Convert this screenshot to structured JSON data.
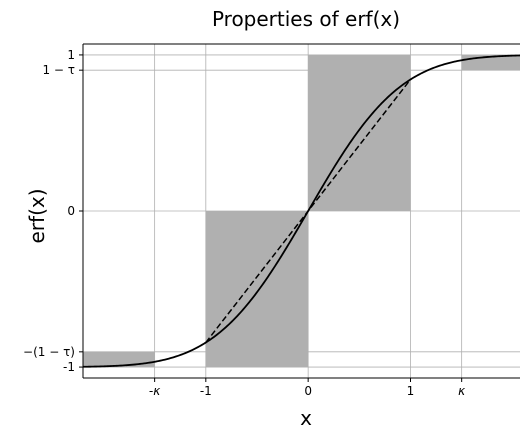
{
  "chart_data": {
    "type": "line",
    "title": "Properties of erf(x)",
    "xlabel": "x",
    "ylabel": "erf(x)",
    "xlim": [
      -2.2,
      2.07
    ],
    "ylim": [
      -1.07,
      1.07
    ],
    "grid": true,
    "kappa": 1.5,
    "tau": 0.0977,
    "x_ticks": [
      {
        "value": -1.5,
        "label": "-κ"
      },
      {
        "value": -1,
        "label": "-1"
      },
      {
        "value": 0,
        "label": "0"
      },
      {
        "value": 1,
        "label": "1"
      },
      {
        "value": 1.5,
        "label": "κ"
      }
    ],
    "y_ticks": [
      {
        "value": 1,
        "label": "1"
      },
      {
        "value": 0.9023,
        "label": "1 − τ"
      },
      {
        "value": 0,
        "label": "0"
      },
      {
        "value": -0.9023,
        "label": "−(1 − τ)"
      },
      {
        "value": -1,
        "label": "-1"
      }
    ],
    "shaded_regions": [
      {
        "x0": -2.2,
        "x1": -1.5,
        "y0": -1,
        "y1": -0.9023
      },
      {
        "x0": -1,
        "x1": 0,
        "y0": -1,
        "y1": 0
      },
      {
        "x0": 0,
        "x1": 1,
        "y0": 0,
        "y1": 1
      },
      {
        "x0": 1.5,
        "x1": 2.07,
        "y0": 0.9023,
        "y1": 1
      }
    ],
    "series": [
      {
        "style": "solid",
        "function": "erf",
        "x_range": [
          -2.2,
          2.07
        ]
      },
      {
        "style": "dashed",
        "points": [
          [
            -1,
            -0.8427
          ],
          [
            1,
            0.8427
          ]
        ]
      }
    ],
    "colors": {
      "shade": "#b0b0b0",
      "grid": "#b0b0b0",
      "line": "#000000"
    }
  }
}
